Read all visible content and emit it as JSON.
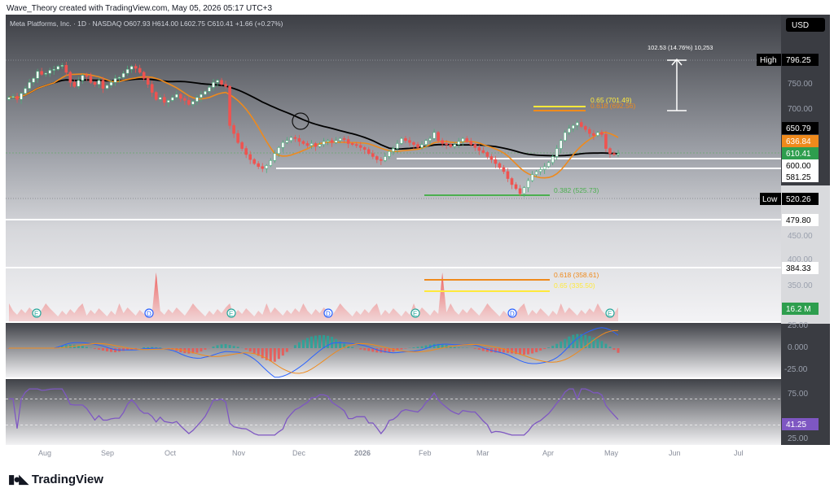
{
  "header": {
    "caption": "Wave_Theory created with TradingView.com, May 05, 2026 05:17 UTC+3"
  },
  "ticker": {
    "line": "Meta Platforms, Inc. · 1D · NASDAQ  O607.93  H614.00  L602.75  C610.41  +1.66 (+0.27%)"
  },
  "currency_button": "USD",
  "measure_label": "102.53 (14.76%) 10,253",
  "fib_labels": {
    "f65": "0.65 (701.49)",
    "f618_top": "0.618 (692.56)",
    "f382": "0.382 (525.73)",
    "f618_low": "0.618 (358.61)",
    "f65_low": "0.65 (335.50)"
  },
  "price_badges": [
    {
      "label": "High",
      "value": "796.25",
      "bg": "#000000",
      "fg": "#ffffff"
    },
    {
      "value": "650.79",
      "bg": "#000000",
      "fg": "#ffffff"
    },
    {
      "value": "636.84",
      "bg": "#ef8a1c",
      "fg": "#ffffff"
    },
    {
      "value": "610.41",
      "bg": "#2e9e4e",
      "fg": "#ffffff"
    },
    {
      "value": "600.00",
      "bg": "#ffffff",
      "fg": "#000000"
    },
    {
      "value": "581.25",
      "bg": "#ffffff",
      "fg": "#000000"
    },
    {
      "label": "Low",
      "value": "520.26",
      "bg": "#000000",
      "fg": "#ffffff"
    },
    {
      "value": "479.80",
      "bg": "#ffffff",
      "fg": "#000000"
    },
    {
      "value": "384.33",
      "bg": "#ffffff",
      "fg": "#000000"
    },
    {
      "value": "16.2 M",
      "bg": "#2e9e4e",
      "fg": "#ffffff"
    },
    {
      "value": "41.25",
      "bg": "#7e57c2",
      "fg": "#ffffff"
    }
  ],
  "price_axis_ticks": [
    "750.00",
    "700.00",
    "450.00",
    "400.00",
    "350.00"
  ],
  "macd_ticks": [
    "25.00",
    "0.000",
    "-25.00"
  ],
  "rsi_ticks": [
    "75.00",
    "25.00"
  ],
  "time_axis": [
    "Aug",
    "Sep",
    "Oct",
    "Nov",
    "Dec",
    "2026",
    "Feb",
    "Mar",
    "Apr",
    "May",
    "Jun",
    "Jul"
  ],
  "event_markers": [
    "E",
    "D",
    "E",
    "D",
    "E",
    "D",
    "E"
  ],
  "colors": {
    "ema_orange": "#ef8a1c",
    "sma_black": "#000000",
    "up_candle": "#4caf7d",
    "down_candle": "#ef5350",
    "fib_yellow": "#ffe93b",
    "fib_green": "#4caf50",
    "macd_blue": "#2962ff",
    "rsi_purple": "#7e57c2"
  },
  "footer": {
    "brand": "TradingView"
  },
  "chart_data": {
    "type": "candlestick",
    "symbol": "Meta Platforms, Inc.",
    "interval": "1D",
    "exchange": "NASDAQ",
    "last": {
      "open": 607.93,
      "high": 614.0,
      "low": 602.75,
      "close": 610.41,
      "change": 1.66,
      "change_pct": 0.27
    },
    "high": 796.25,
    "low": 520.26,
    "ema": 636.84,
    "sma": 650.79,
    "horizontal_levels": [
      600.0,
      581.25,
      479.8,
      384.33
    ],
    "fib_levels": [
      701.49,
      692.56,
      525.73,
      358.61,
      335.5
    ],
    "volume_last": "16.2M",
    "rsi_last": 41.25,
    "x_labels": [
      "Aug",
      "Sep",
      "Oct",
      "Nov",
      "Dec",
      "2026",
      "Feb",
      "Mar",
      "Apr",
      "May",
      "Jun",
      "Jul"
    ],
    "y_ticks": [
      750,
      700,
      450,
      400,
      350
    ],
    "series": [
      {
        "close": [
          722,
          724,
          718,
          730,
          740,
          752,
          760,
          774,
          768,
          770,
          776,
          778,
          784,
          786,
          772,
          752,
          744,
          756,
          766,
          764,
          752,
          748,
          756,
          740,
          746,
          752,
          760,
          762,
          770,
          778,
          784,
          780,
          772,
          760,
          748,
          732,
          718,
          722,
          712,
          716,
          722,
          728,
          720,
          716,
          708,
          714,
          722,
          728,
          734,
          742,
          752,
          756,
          748,
          744,
          666,
          650,
          632,
          620,
          608,
          598,
          590,
          584,
          580,
          586,
          596,
          610,
          622,
          632,
          636,
          642,
          640,
          634,
          630,
          626,
          630,
          624,
          628,
          634,
          636,
          632,
          636,
          640,
          638,
          630,
          628,
          626,
          622,
          618,
          610,
          604,
          598,
          596,
          604,
          614,
          620,
          630,
          640,
          636,
          632,
          628,
          622,
          628,
          636,
          640,
          652,
          636,
          630,
          628,
          624,
          628,
          634,
          640,
          634,
          628,
          622,
          616,
          612,
          604,
          598,
          590,
          582,
          574,
          560,
          548,
          540,
          530,
          542,
          556,
          568,
          574,
          578,
          584,
          592,
          604,
          620,
          636,
          652,
          660,
          666,
          672,
          664,
          658,
          650,
          646,
          652,
          648,
          620,
          610,
          608,
          610
        ]
      }
    ]
  }
}
